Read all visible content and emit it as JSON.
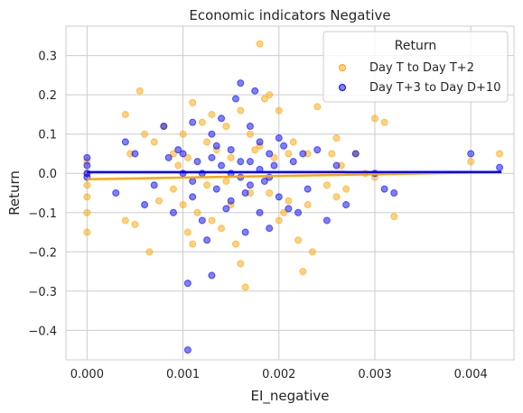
{
  "chart_data": {
    "type": "scatter",
    "title": "Economic indicators Negative",
    "xlabel": "EI_negative",
    "ylabel": "Return",
    "xlim": [
      -0.00022,
      0.00445
    ],
    "ylim": [
      -0.475,
      0.375
    ],
    "xticks": [
      0.0,
      0.001,
      0.002,
      0.003,
      0.004
    ],
    "xtick_labels": [
      "0.000",
      "0.001",
      "0.002",
      "0.003",
      "0.004"
    ],
    "yticks": [
      -0.4,
      -0.3,
      -0.2,
      -0.1,
      0.0,
      0.1,
      0.2,
      0.3
    ],
    "ytick_labels": [
      "−0.4",
      "−0.3",
      "−0.2",
      "−0.1",
      "0.0",
      "0.1",
      "0.2",
      "0.3"
    ],
    "grid": true,
    "legend": {
      "title": "Return",
      "placement": "top-right"
    },
    "series": [
      {
        "name": "Day T to Day T+2",
        "color": "#FFA500",
        "trend": {
          "slope": 4.2,
          "intercept": -0.015,
          "x_range": [
            0.0,
            0.00432
          ]
        },
        "points": [
          [
            0.0,
            0.0
          ],
          [
            0.0,
            -0.06
          ],
          [
            0.0,
            -0.1
          ],
          [
            0.0,
            -0.15
          ],
          [
            0.0,
            0.03
          ],
          [
            0.0,
            -0.03
          ],
          [
            0.0004,
            0.15
          ],
          [
            0.0004,
            -0.12
          ],
          [
            0.00045,
            0.05
          ],
          [
            0.0005,
            -0.13
          ],
          [
            0.00055,
            0.21
          ],
          [
            0.0006,
            0.1
          ],
          [
            0.00065,
            -0.2
          ],
          [
            0.0007,
            0.08
          ],
          [
            0.00075,
            -0.07
          ],
          [
            0.0008,
            0.12
          ],
          [
            0.0009,
            0.05
          ],
          [
            0.0009,
            -0.04
          ],
          [
            0.00095,
            0.02
          ],
          [
            0.001,
            0.1
          ],
          [
            0.001,
            -0.08
          ],
          [
            0.00105,
            -0.15
          ],
          [
            0.0011,
            0.18
          ],
          [
            0.0011,
            -0.18
          ],
          [
            0.00115,
            -0.1
          ],
          [
            0.0012,
            0.13
          ],
          [
            0.00125,
            -0.03
          ],
          [
            0.0013,
            0.15
          ],
          [
            0.0013,
            -0.12
          ],
          [
            0.00135,
            0.06
          ],
          [
            0.0014,
            -0.14
          ],
          [
            0.00145,
            0.12
          ],
          [
            0.0015,
            -0.08
          ],
          [
            0.0015,
            0.04
          ],
          [
            0.00155,
            -0.18
          ],
          [
            0.0016,
            0.16
          ],
          [
            0.0016,
            -0.23
          ],
          [
            0.00165,
            -0.29
          ],
          [
            0.0017,
            0.1
          ],
          [
            0.0017,
            -0.05
          ],
          [
            0.00175,
            0.06
          ],
          [
            0.0018,
            0.33
          ],
          [
            0.0018,
            0.07
          ],
          [
            0.00185,
            0.19
          ],
          [
            0.0019,
            0.2
          ],
          [
            0.0019,
            -0.05
          ],
          [
            0.00195,
            0.04
          ],
          [
            0.002,
            -0.12
          ],
          [
            0.002,
            0.16
          ],
          [
            0.00205,
            -0.1
          ],
          [
            0.0021,
            0.05
          ],
          [
            0.0021,
            -0.07
          ],
          [
            0.00215,
            0.08
          ],
          [
            0.0022,
            -0.17
          ],
          [
            0.00225,
            -0.25
          ],
          [
            0.0023,
            0.05
          ],
          [
            0.0023,
            -0.08
          ],
          [
            0.00235,
            -0.2
          ],
          [
            0.0024,
            0.17
          ],
          [
            0.0025,
            -0.03
          ],
          [
            0.00255,
            0.05
          ],
          [
            0.0026,
            0.09
          ],
          [
            0.0026,
            -0.06
          ],
          [
            0.00265,
            0.02
          ],
          [
            0.0027,
            -0.04
          ],
          [
            0.0028,
            0.05
          ],
          [
            0.0029,
            0.0
          ],
          [
            0.003,
            0.14
          ],
          [
            0.003,
            -0.01
          ],
          [
            0.0031,
            0.13
          ],
          [
            0.0032,
            -0.11
          ],
          [
            0.004,
            0.03
          ],
          [
            0.0043,
            0.05
          ],
          [
            0.00125,
            0.08
          ],
          [
            0.00145,
            -0.02
          ],
          [
            0.00105,
            0.04
          ]
        ]
      },
      {
        "name": "Day T+3 to Day D+10",
        "color": "#0000FF",
        "trend": {
          "slope": 0.1,
          "intercept": 0.003,
          "x_range": [
            0.0,
            0.00432
          ]
        },
        "points": [
          [
            0.0,
            0.04
          ],
          [
            0.0,
            0.02
          ],
          [
            0.0,
            0.0
          ],
          [
            0.0,
            -0.01
          ],
          [
            0.0003,
            -0.05
          ],
          [
            0.0004,
            0.08
          ],
          [
            0.0005,
            0.05
          ],
          [
            0.0006,
            -0.08
          ],
          [
            0.0007,
            -0.03
          ],
          [
            0.0008,
            0.12
          ],
          [
            0.00085,
            0.04
          ],
          [
            0.0009,
            -0.1
          ],
          [
            0.00095,
            0.06
          ],
          [
            0.001,
            0.0
          ],
          [
            0.00105,
            -0.28
          ],
          [
            0.00105,
            -0.45
          ],
          [
            0.0011,
            0.13
          ],
          [
            0.0011,
            -0.06
          ],
          [
            0.00115,
            0.03
          ],
          [
            0.0012,
            -0.12
          ],
          [
            0.00125,
            -0.17
          ],
          [
            0.0013,
            -0.26
          ],
          [
            0.0013,
            0.1
          ],
          [
            0.00135,
            -0.04
          ],
          [
            0.0014,
            0.14
          ],
          [
            0.00145,
            -0.09
          ],
          [
            0.0015,
            0.06
          ],
          [
            0.0015,
            -0.07
          ],
          [
            0.00155,
            0.19
          ],
          [
            0.0016,
            0.23
          ],
          [
            0.0016,
            0.03
          ],
          [
            0.00165,
            -0.15
          ],
          [
            0.0017,
            0.12
          ],
          [
            0.0017,
            -0.03
          ],
          [
            0.00175,
            0.21
          ],
          [
            0.0018,
            0.08
          ],
          [
            0.0018,
            -0.1
          ],
          [
            0.00185,
            -0.02
          ],
          [
            0.0019,
            0.05
          ],
          [
            0.0019,
            -0.14
          ],
          [
            0.00195,
            0.02
          ],
          [
            0.002,
            -0.06
          ],
          [
            0.002,
            0.09
          ],
          [
            0.00205,
            0.07
          ],
          [
            0.0021,
            -0.09
          ],
          [
            0.00215,
            0.03
          ],
          [
            0.0022,
            -0.1
          ],
          [
            0.00225,
            0.05
          ],
          [
            0.0023,
            -0.04
          ],
          [
            0.0024,
            0.06
          ],
          [
            0.0025,
            -0.12
          ],
          [
            0.0026,
            0.02
          ],
          [
            0.0027,
            -0.08
          ],
          [
            0.0028,
            0.05
          ],
          [
            0.003,
            0.0
          ],
          [
            0.0031,
            -0.04
          ],
          [
            0.0032,
            -0.05
          ],
          [
            0.004,
            0.05
          ],
          [
            0.0043,
            0.015
          ],
          [
            0.0012,
            0.0
          ],
          [
            0.0014,
            0.02
          ],
          [
            0.0016,
            -0.01
          ],
          [
            0.0018,
            0.01
          ],
          [
            0.001,
            0.05
          ],
          [
            0.0011,
            -0.02
          ],
          [
            0.0013,
            0.04
          ],
          [
            0.0015,
            0.0
          ],
          [
            0.0017,
            0.03
          ],
          [
            0.0019,
            -0.01
          ],
          [
            0.00135,
            0.07
          ],
          [
            0.00165,
            -0.05
          ]
        ]
      }
    ]
  }
}
